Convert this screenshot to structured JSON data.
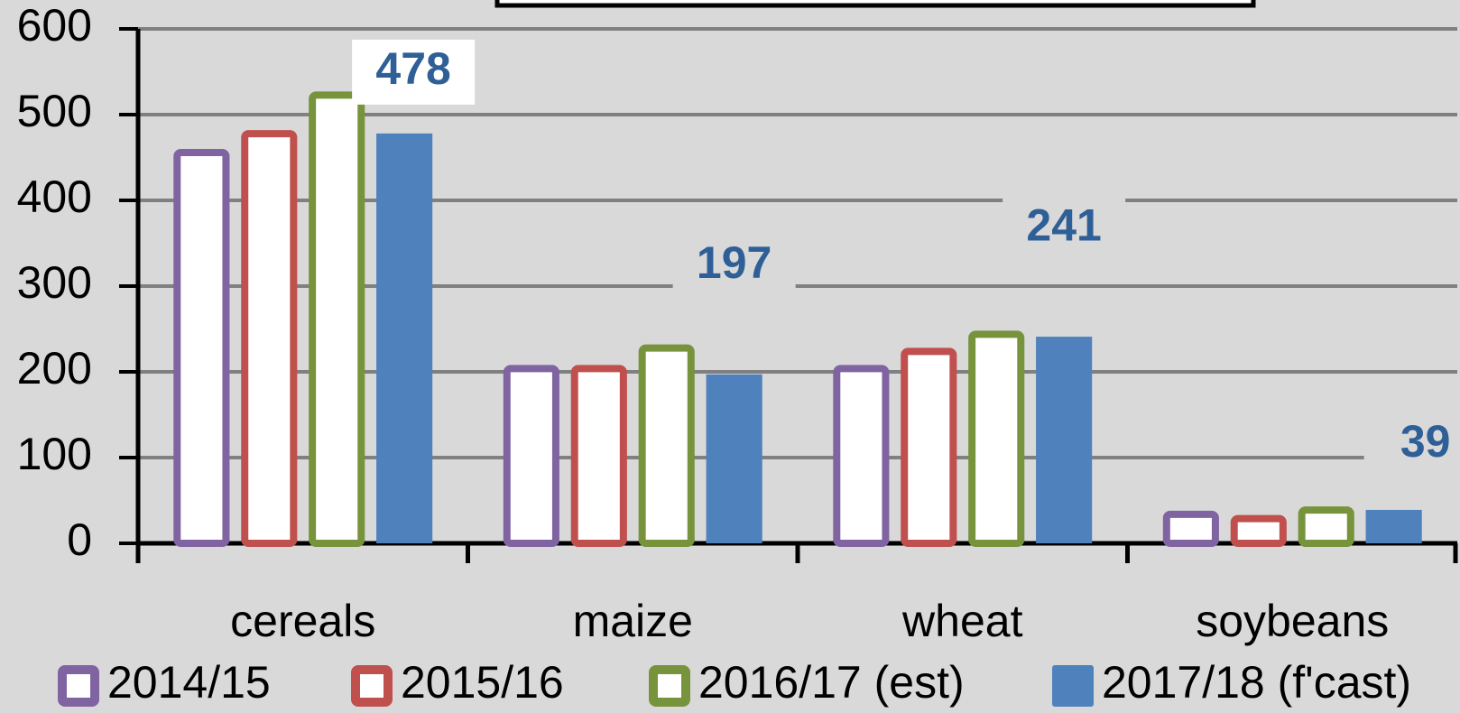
{
  "chart_data": {
    "type": "bar",
    "categories": [
      "cereals",
      "maize",
      "wheat",
      "soybeans"
    ],
    "series": [
      {
        "name": "2014/15",
        "color": "#8064a2",
        "style": "outline",
        "values": [
          460,
          208,
          208,
          38
        ]
      },
      {
        "name": "2015/16",
        "color": "#c0504d",
        "style": "outline",
        "values": [
          482,
          208,
          228,
          33
        ]
      },
      {
        "name": "2016/17 (est)",
        "color": "#77933c",
        "style": "outline",
        "values": [
          527,
          232,
          248,
          43
        ]
      },
      {
        "name": "2017/18 (f'cast)",
        "color": "#4f81bd",
        "style": "solid",
        "values": [
          478,
          197,
          241,
          39
        ],
        "data_labels": true
      }
    ],
    "ylim": [
      0,
      600
    ],
    "yticks": [
      0,
      100,
      200,
      300,
      400,
      500,
      600
    ],
    "grid": true,
    "legend": "bottom"
  }
}
